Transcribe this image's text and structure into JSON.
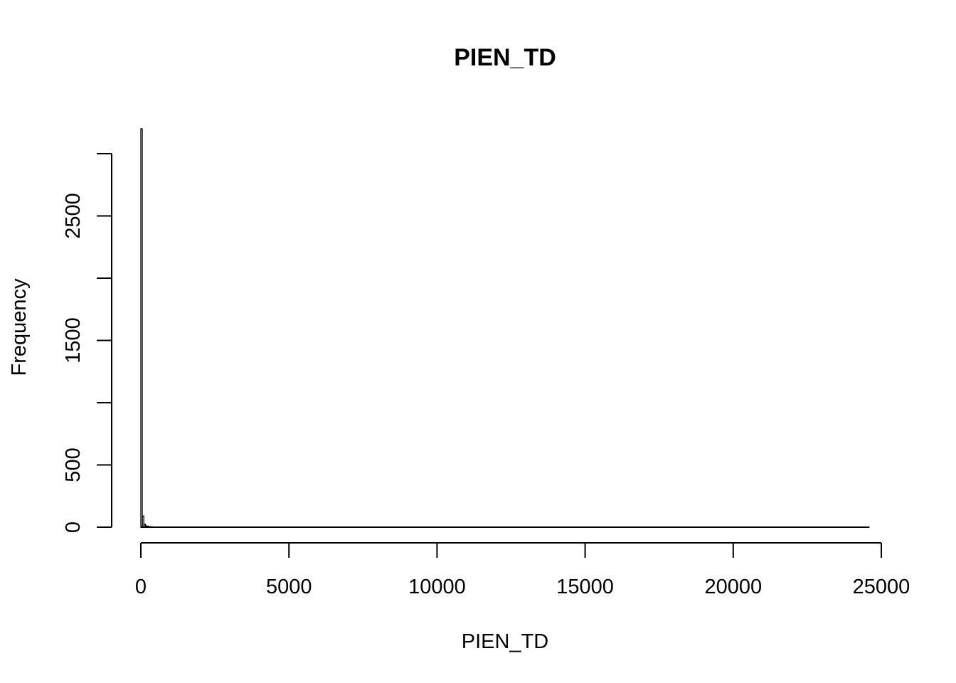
{
  "chart_data": {
    "type": "bar",
    "title": "PIEN_TD",
    "xlabel": "PIEN_TD",
    "ylabel": "Frequency",
    "xlim": [
      0,
      25000
    ],
    "ylim": [
      0,
      3000
    ],
    "x_ticks": [
      0,
      5000,
      10000,
      15000,
      20000,
      25000
    ],
    "y_ticks": [
      0,
      500,
      1000,
      1500,
      2000,
      2500,
      3000
    ],
    "y_tick_labels_shown": [
      0,
      500,
      1500,
      2500
    ],
    "bin_width": 50,
    "bins_start": [
      0,
      50,
      100,
      150,
      200,
      250,
      300,
      350,
      400,
      450
    ],
    "values": [
      3200,
      90,
      25,
      12,
      8,
      5,
      4,
      3,
      2,
      2
    ],
    "data_extent_max": 24600,
    "grid": false,
    "legend": "none"
  }
}
